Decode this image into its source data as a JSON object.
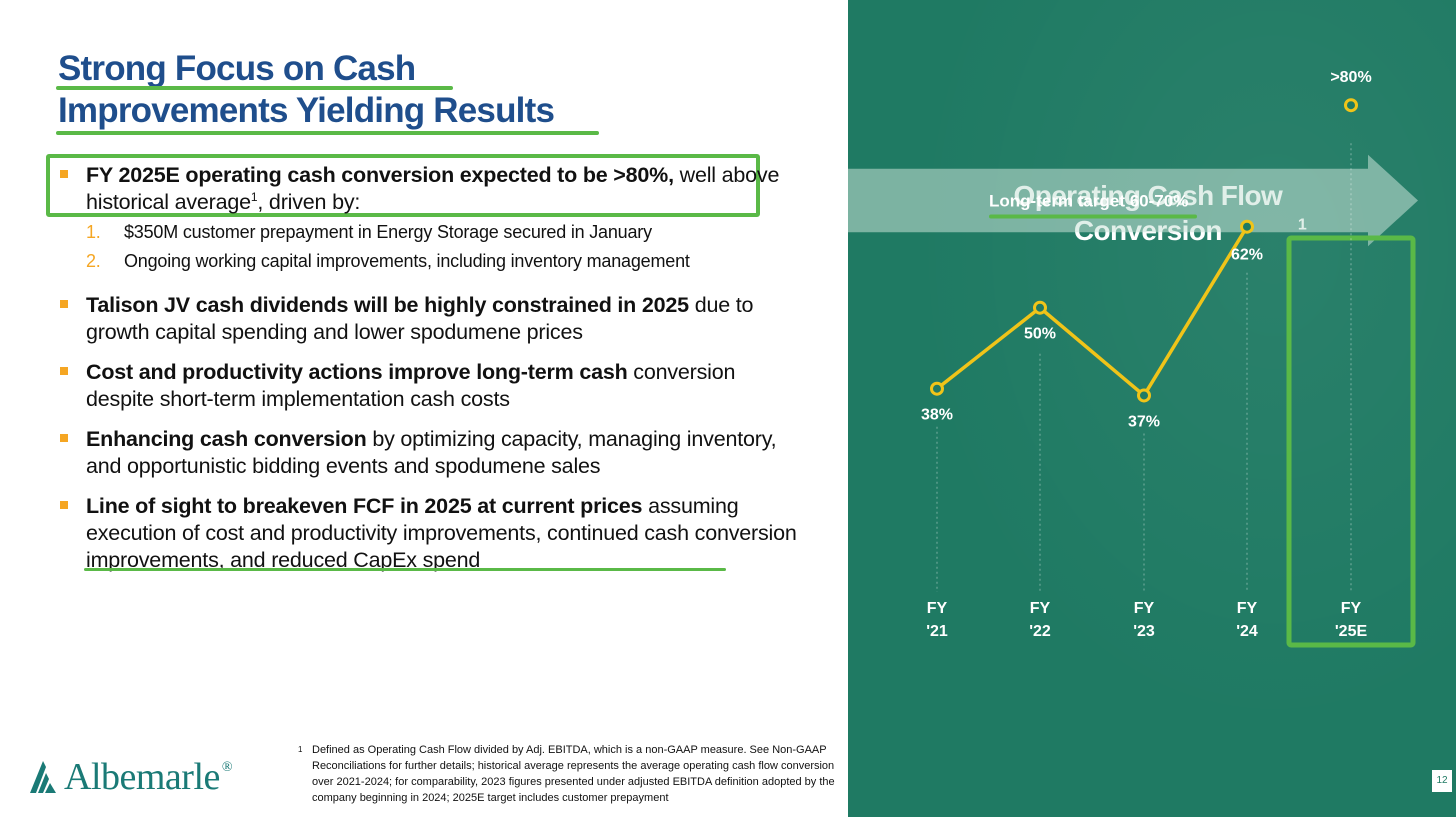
{
  "slide": {
    "title_line1": "Strong Focus on Cash",
    "title_line2": "Improvements Yielding Results",
    "page_number": "12"
  },
  "bullets": [
    {
      "bold": "FY 2025E operating cash conversion expected to be >80%,",
      "rest": " well above historical average",
      "sup": "1",
      "rest2": ", driven by:"
    },
    {
      "bold": "Talison JV cash dividends will be highly constrained in 2025",
      "rest": " due to growth capital spending and lower spodumene prices"
    },
    {
      "bold": "Cost and productivity actions improve long-term cash",
      "rest": " conversion despite short-term implementation cash costs"
    },
    {
      "bold": "Enhancing cash conversion",
      "rest": " by optimizing capacity, managing inventory, and opportunistic bidding events and spodumene sales"
    },
    {
      "bold": "Line of sight to breakeven FCF in 2025 at current prices",
      "rest": " assuming execution of cost and productivity improvements, continued cash conversion improvements, and reduced CapEx spend"
    }
  ],
  "sub_items": [
    {
      "num": "1.",
      "text": "$350M customer prepayment in Energy Storage secured in January"
    },
    {
      "num": "2.",
      "text": "Ongoing working capital improvements, including inventory management"
    }
  ],
  "footnote": {
    "mark": "1",
    "text": "Defined as Operating Cash Flow divided by Adj. EBITDA, which is a non-GAAP measure. See Non-GAAP Reconciliations for further details; historical average represents the average operating cash flow conversion over 2021-2024; for comparability, 2023 figures presented under adjusted EBITDA definition adopted by the company beginning in 2024; 2025E target includes customer prepayment"
  },
  "logo": {
    "text": "Albemarle",
    "reg": "®"
  },
  "colors": {
    "navy": "#1f4e8c",
    "green_accent": "#5ab947",
    "orange": "#f5a623",
    "teal_bg": "#1f7a63",
    "line_yellow": "#f0c419"
  },
  "chart_data": {
    "type": "line",
    "title": "Operating Cash Flow Conversion",
    "title_sup": "1",
    "categories": [
      "FY '21",
      "FY '22",
      "FY '23",
      "FY '24",
      "FY '25E"
    ],
    "x_top": [
      "FY",
      "FY",
      "FY",
      "FY",
      "FY"
    ],
    "x_bottom": [
      "'21",
      "'22",
      "'23",
      "'24",
      "'25E"
    ],
    "values": [
      38,
      50,
      37,
      62,
      80
    ],
    "data_labels": [
      "38%",
      "50%",
      "37%",
      "62%",
      ">80%"
    ],
    "connected_points": 4,
    "target_band": {
      "label": "Long-term target 60-70%",
      "low": 60,
      "high": 70
    },
    "highlight_category": "FY '25E",
    "ylim": [
      20,
      90
    ],
    "grid": false,
    "xlabel": "",
    "ylabel": ""
  }
}
